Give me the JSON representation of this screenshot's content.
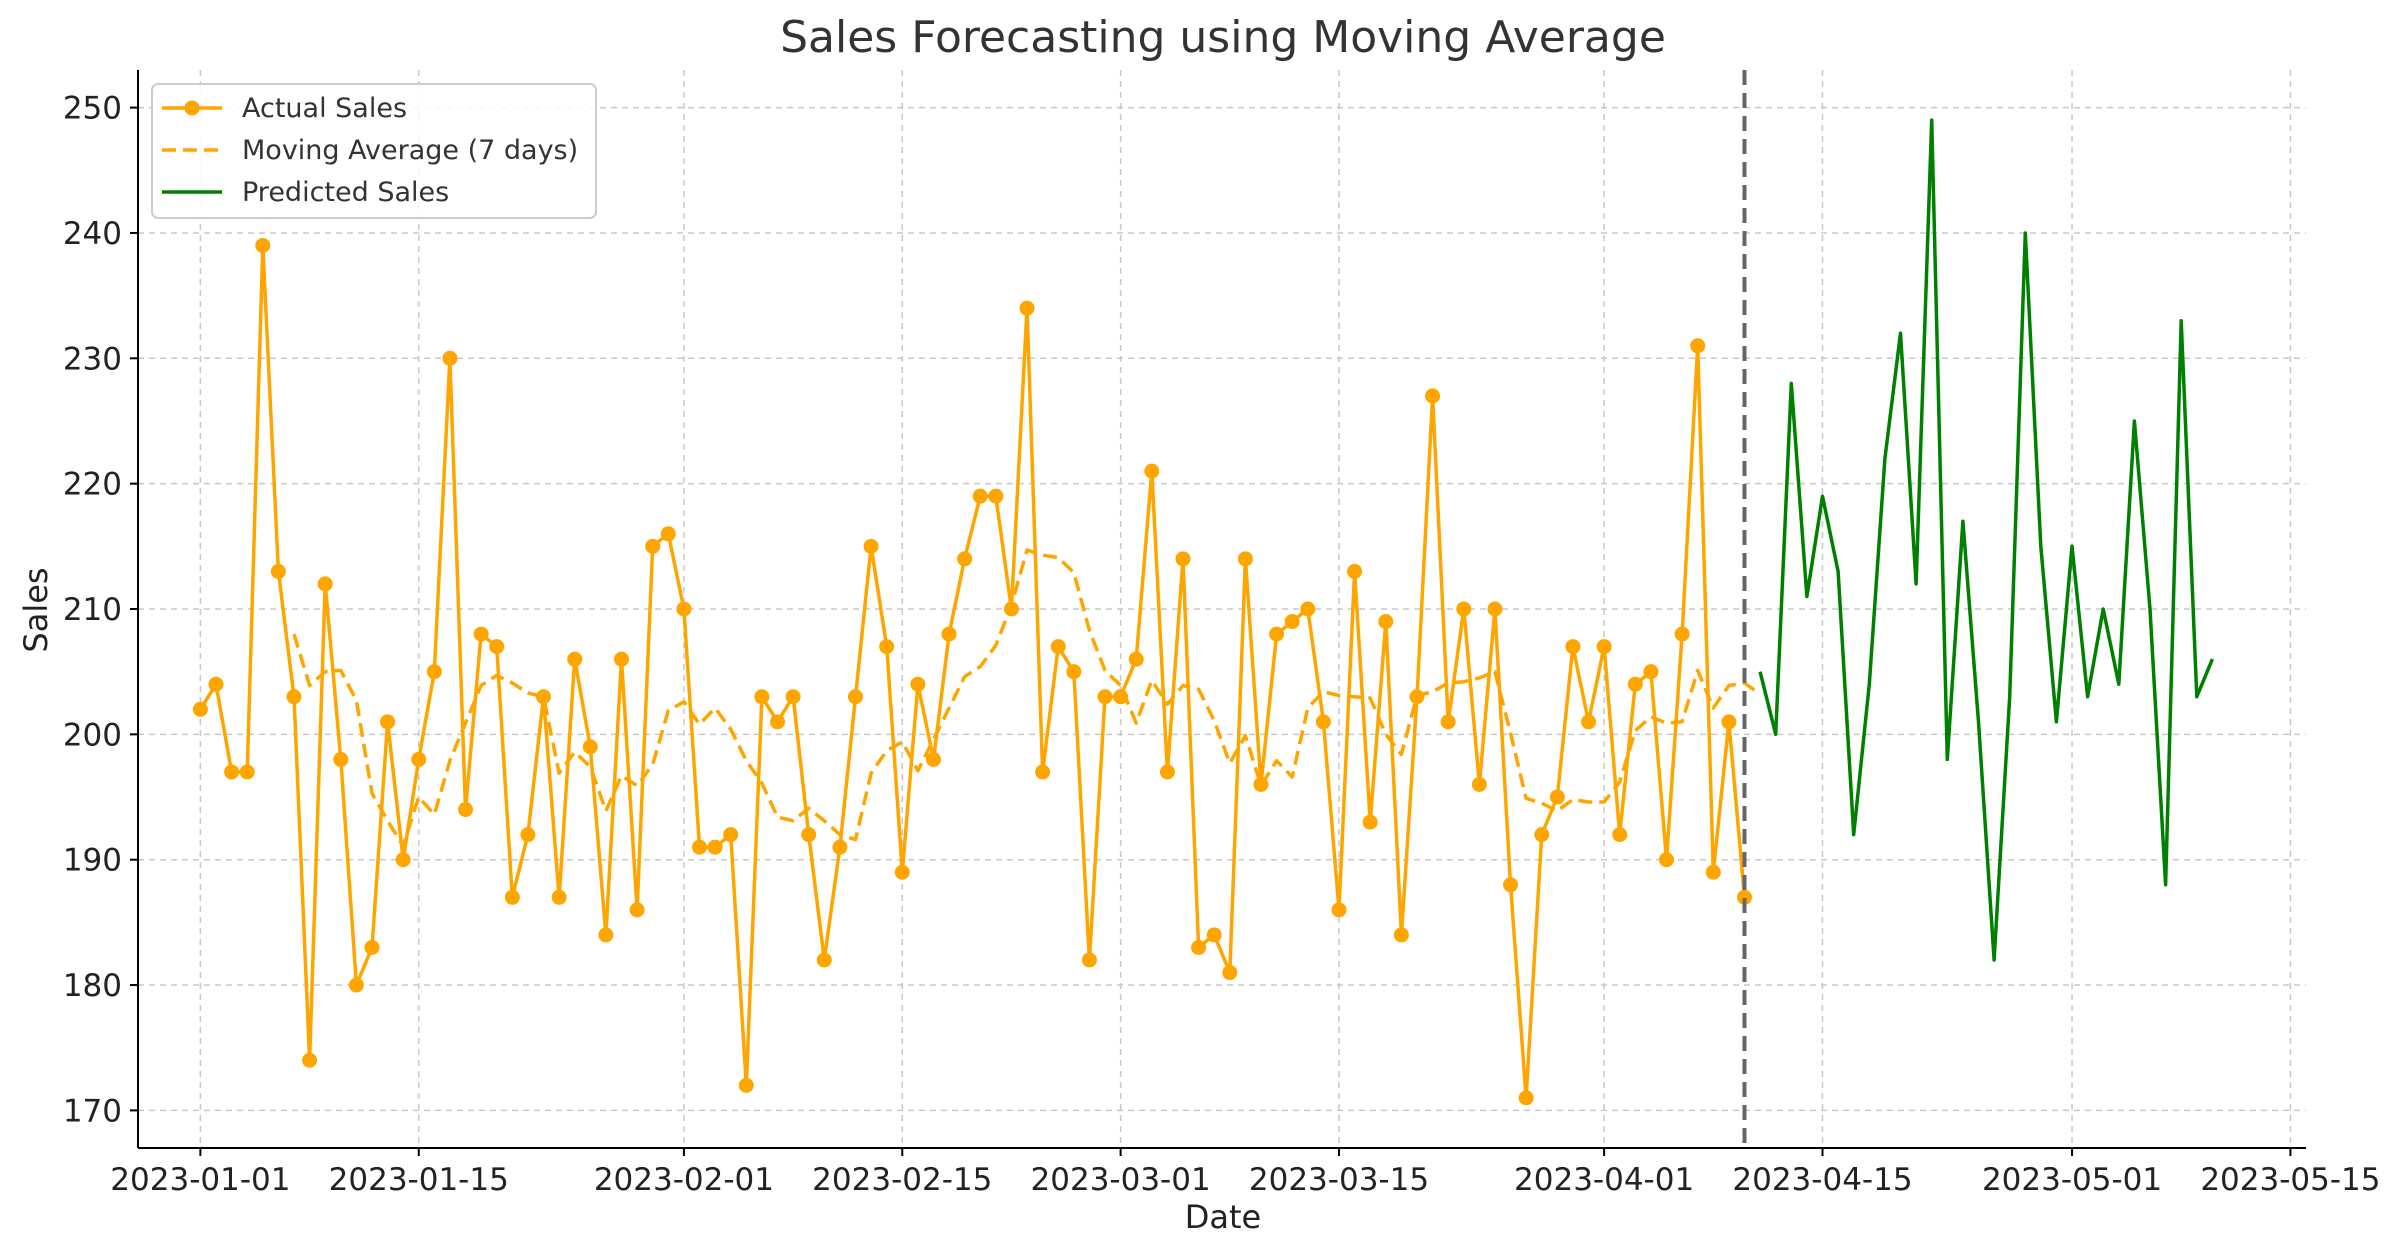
{
  "chart_data": {
    "type": "line",
    "title": "Sales Forecasting using Moving Average",
    "xlabel": "Date",
    "ylabel": "Sales",
    "ylim": [
      167,
      253
    ],
    "xlim": [
      "2022-12-28",
      "2023-05-16"
    ],
    "yticks": [
      170,
      180,
      190,
      200,
      210,
      220,
      230,
      240,
      250
    ],
    "xticks": [
      "2023-01-01",
      "2023-01-15",
      "2023-02-01",
      "2023-02-15",
      "2023-03-01",
      "2023-03-15",
      "2023-04-01",
      "2023-04-15",
      "2023-05-01",
      "2023-05-15"
    ],
    "grid": true,
    "legend_position": "upper-left",
    "forecast_divider_date": "2023-04-10",
    "series": [
      {
        "name": "Actual Sales",
        "style": "solid-with-markers",
        "color": "#FFA500",
        "start_date": "2023-01-01",
        "values": [
          202,
          204,
          197,
          197,
          239,
          213,
          203,
          174,
          212,
          198,
          180,
          183,
          201,
          190,
          198,
          205,
          230,
          194,
          208,
          207,
          187,
          192,
          203,
          187,
          206,
          199,
          184,
          206,
          186,
          215,
          216,
          210,
          191,
          191,
          192,
          172,
          203,
          201,
          203,
          192,
          182,
          191,
          203,
          215,
          207,
          189,
          204,
          198,
          208,
          214,
          219,
          219,
          210,
          234,
          197,
          207,
          205,
          182,
          203,
          203,
          206,
          221,
          197,
          214,
          183,
          184,
          181,
          214,
          196,
          208,
          209,
          210,
          201,
          186,
          213,
          193,
          209,
          184,
          203,
          227,
          201,
          210,
          196,
          210,
          188,
          171,
          192,
          195,
          207,
          201,
          207,
          192,
          204,
          205,
          190,
          208,
          231,
          189,
          201,
          187
        ]
      },
      {
        "name": "Moving Average (7 days)",
        "style": "dashed",
        "color": "#FFA500",
        "start_date": "2023-01-07",
        "values": [
          208,
          203.9,
          205.0,
          205.1,
          202.7,
          195.3,
          193.1,
          191.1,
          195.0,
          193.6,
          197.9,
          200.9,
          203.9,
          204.7,
          204.1,
          203.3,
          203.0,
          196.9,
          198.6,
          197.4,
          193.9,
          196.7,
          195.9,
          197.6,
          201.9,
          202.6,
          200.8,
          202.1,
          200.4,
          197.9,
          196.1,
          193.4,
          193.1,
          194.1,
          193.1,
          192.0,
          191.6,
          196.9,
          198.7,
          199.4,
          197.1,
          199.6,
          202.1,
          204.6,
          205.4,
          207.1,
          210.3,
          214.7,
          214.3,
          214.1,
          212.9,
          208.3,
          205.1,
          203.9,
          200.9,
          204.3,
          202.4,
          203.9,
          203.6,
          201.1,
          197.7,
          199.9,
          195.9,
          197.9,
          196.6,
          202.1,
          203.4,
          203.1,
          203.0,
          202.9,
          200.0,
          198.4,
          203.1,
          203.4,
          204.1,
          204.2,
          204.5,
          205.0,
          200.1,
          194.9,
          194.5,
          193.9,
          194.8,
          194.6,
          194.6,
          196.2,
          200.3,
          201.4,
          200.9,
          201.0,
          205.1,
          202.1,
          203.9,
          204.1,
          203.2
        ]
      },
      {
        "name": "Predicted Sales",
        "style": "solid",
        "color": "#008000",
        "start_date": "2023-04-11",
        "values": [
          205,
          200,
          228,
          211,
          219,
          213,
          192,
          204,
          222,
          232,
          212,
          249,
          198,
          217,
          201,
          182,
          203,
          240,
          215,
          201,
          215,
          203,
          210,
          204,
          225,
          210,
          188,
          233,
          203,
          206
        ]
      }
    ]
  }
}
